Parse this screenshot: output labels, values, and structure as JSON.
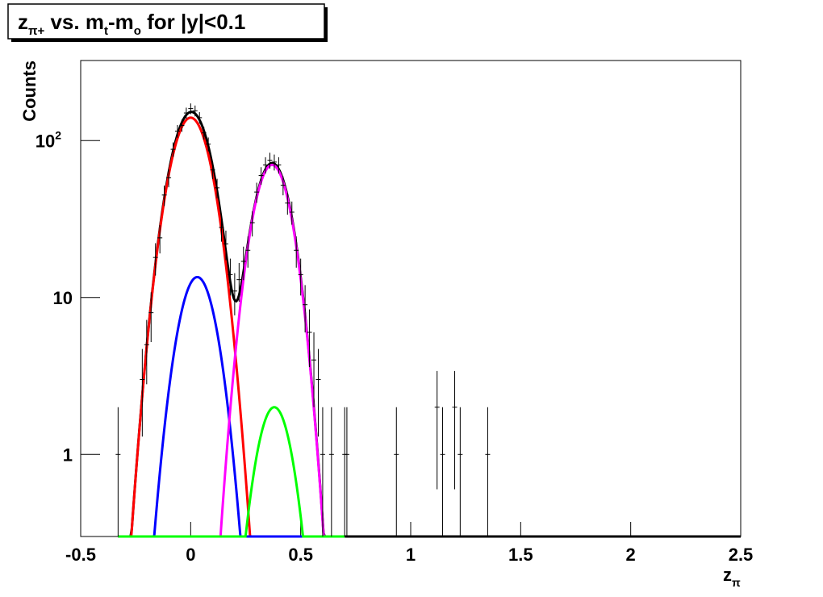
{
  "chart_data": {
    "type": "errorbar",
    "title": [
      "z",
      "π+",
      " vs. m",
      "t",
      "-m",
      "o",
      " for |y|<0.1"
    ],
    "title_subscript": [
      false,
      true,
      false,
      true,
      false,
      true,
      false
    ],
    "x_label": [
      "z",
      "π"
    ],
    "x_label_subscript": [
      false,
      true
    ],
    "y_label": "Counts",
    "xlim": [
      -0.5,
      2.5
    ],
    "ylim": [
      0.3,
      324
    ],
    "log_y": true,
    "xticks": [
      -0.5,
      0,
      0.5,
      1,
      1.5,
      2,
      2.5
    ],
    "yticks": [
      1,
      10,
      {
        "value": 100,
        "label": "10",
        "superscript": "2"
      }
    ],
    "marker_color": "#000000",
    "x": [
      -0.33,
      -0.22,
      -0.2,
      -0.18,
      -0.16,
      -0.14,
      -0.12,
      -0.1,
      -0.08,
      -0.06,
      -0.04,
      -0.02,
      0,
      0.02,
      0.04,
      0.06,
      0.08,
      0.1,
      0.12,
      0.14,
      0.16,
      0.18,
      0.2,
      0.22,
      0.24,
      0.26,
      0.28,
      0.3,
      0.32,
      0.34,
      0.36,
      0.38,
      0.4,
      0.42,
      0.44,
      0.46,
      0.48,
      0.5,
      0.52,
      0.54,
      0.56,
      0.58,
      0.6,
      0.64,
      0.7,
      0.71,
      0.935,
      1.12,
      1.145,
      1.2,
      1.225,
      1.35
    ],
    "values": [
      1,
      3,
      5,
      8,
      18,
      24,
      45,
      58,
      88,
      115,
      125,
      150,
      160,
      155,
      140,
      112,
      95,
      65,
      50,
      28,
      22,
      14,
      11,
      13,
      17,
      20,
      30,
      47,
      60,
      70,
      75,
      73,
      70,
      52,
      40,
      35,
      20,
      14,
      9,
      6,
      4,
      3,
      1,
      1,
      1,
      1,
      1,
      2,
      1,
      2,
      1,
      1
    ],
    "errors": [
      1,
      1.7,
      2.2,
      2.8,
      4.2,
      4.9,
      6.7,
      7.6,
      9.4,
      10.7,
      11.2,
      12.2,
      12.6,
      12.4,
      11.8,
      10.6,
      9.7,
      8.1,
      7.1,
      5.3,
      4.7,
      3.7,
      3.3,
      3.6,
      4.1,
      4.5,
      5.5,
      6.9,
      7.7,
      8.4,
      8.7,
      8.5,
      8.4,
      7.2,
      6.3,
      5.9,
      4.5,
      3.7,
      3,
      2.4,
      2,
      1.7,
      1,
      1,
      1,
      1,
      1,
      1.4,
      1,
      1.4,
      1,
      1
    ],
    "curves": [
      {
        "kind": "sum",
        "color": "#000000",
        "range": [
          -0.33,
          2.5
        ]
      },
      {
        "kind": "gauss",
        "color": "#ff0000",
        "amplitude": 140,
        "mean": 0,
        "sigma": 0.077,
        "range": [
          -0.33,
          0.7
        ]
      },
      {
        "kind": "gauss",
        "color": "#0000ff",
        "amplitude": 13.5,
        "mean": 0.03,
        "sigma": 0.071,
        "range": [
          -0.33,
          0.7
        ]
      },
      {
        "kind": "gauss",
        "color": "#ff00ff",
        "amplitude": 70,
        "mean": 0.37,
        "sigma": 0.071,
        "range": [
          -0.33,
          0.7
        ]
      },
      {
        "kind": "gauss",
        "color": "#00ff00",
        "amplitude": 2,
        "mean": 0.38,
        "sigma": 0.067,
        "range": [
          -0.33,
          0.7
        ]
      }
    ]
  }
}
